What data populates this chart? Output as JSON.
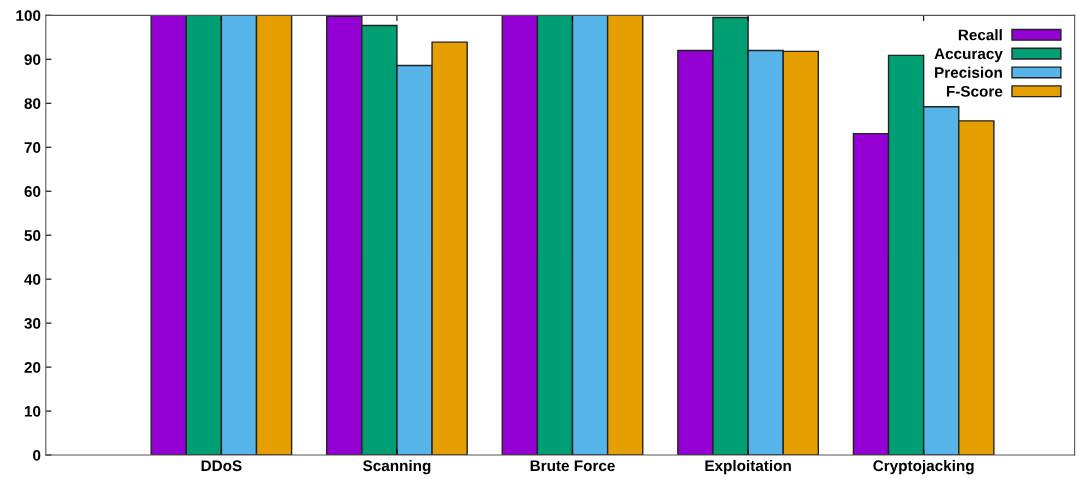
{
  "chart_data": {
    "type": "bar",
    "categories": [
      "DDoS",
      "Scanning",
      "Brute Force",
      "Exploitation",
      "Cryptojacking"
    ],
    "series": [
      {
        "name": "Recall",
        "color": "#9400d3",
        "values": [
          100,
          99.8,
          100,
          92.0,
          73.1
        ]
      },
      {
        "name": "Accuracy",
        "color": "#009e73",
        "values": [
          100,
          97.7,
          100,
          99.5,
          90.9
        ]
      },
      {
        "name": "Precision",
        "color": "#56b4e9",
        "values": [
          100,
          88.6,
          100,
          92.0,
          79.2
        ]
      },
      {
        "name": "F-Score",
        "color": "#e69f00",
        "values": [
          100,
          93.9,
          100,
          91.8,
          76.0
        ]
      }
    ],
    "ylim": [
      0,
      100
    ],
    "yticks": [
      0,
      10,
      20,
      30,
      40,
      50,
      60,
      70,
      80,
      90,
      100
    ],
    "grid": false,
    "legend": "top right"
  }
}
